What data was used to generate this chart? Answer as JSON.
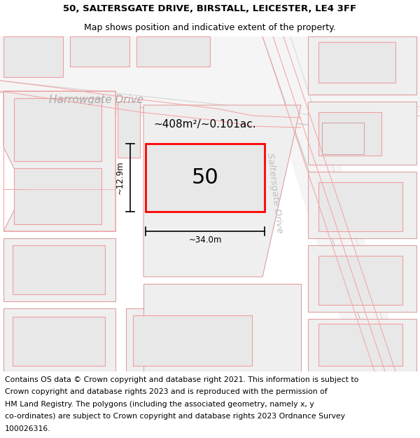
{
  "title_line1": "50, SALTERSGATE DRIVE, BIRSTALL, LEICESTER, LE4 3FF",
  "title_line2": "Map shows position and indicative extent of the property.",
  "footer_line1": "Contains OS data © Crown copyright and database right 2021. This information is subject to",
  "footer_line2": "Crown copyright and database rights 2023 and is reproduced with the permission of",
  "footer_line3": "HM Land Registry. The polygons (including the associated geometry, namely x, y",
  "footer_line4": "co-ordinates) are subject to Crown copyright and database rights 2023 Ordnance Survey",
  "footer_line5": "100026316.",
  "property_label": "50",
  "area_label": "~408m²/~0.101ac.",
  "width_label": "~34.0m",
  "height_label": "~12.9m",
  "road1_label": "Harrowgate Drive",
  "road2_label": "Saltersgate Drive",
  "building_fill": "#e8e8e8",
  "building_edge": "#f0a0a0",
  "plot_fill": "#efefef",
  "plot_edge": "#e0a0a0",
  "prop_fill": "#e8e8e8",
  "prop_edge": "#ff0000",
  "road_fill": "#f5f5f5",
  "map_bg": "#ffffff"
}
